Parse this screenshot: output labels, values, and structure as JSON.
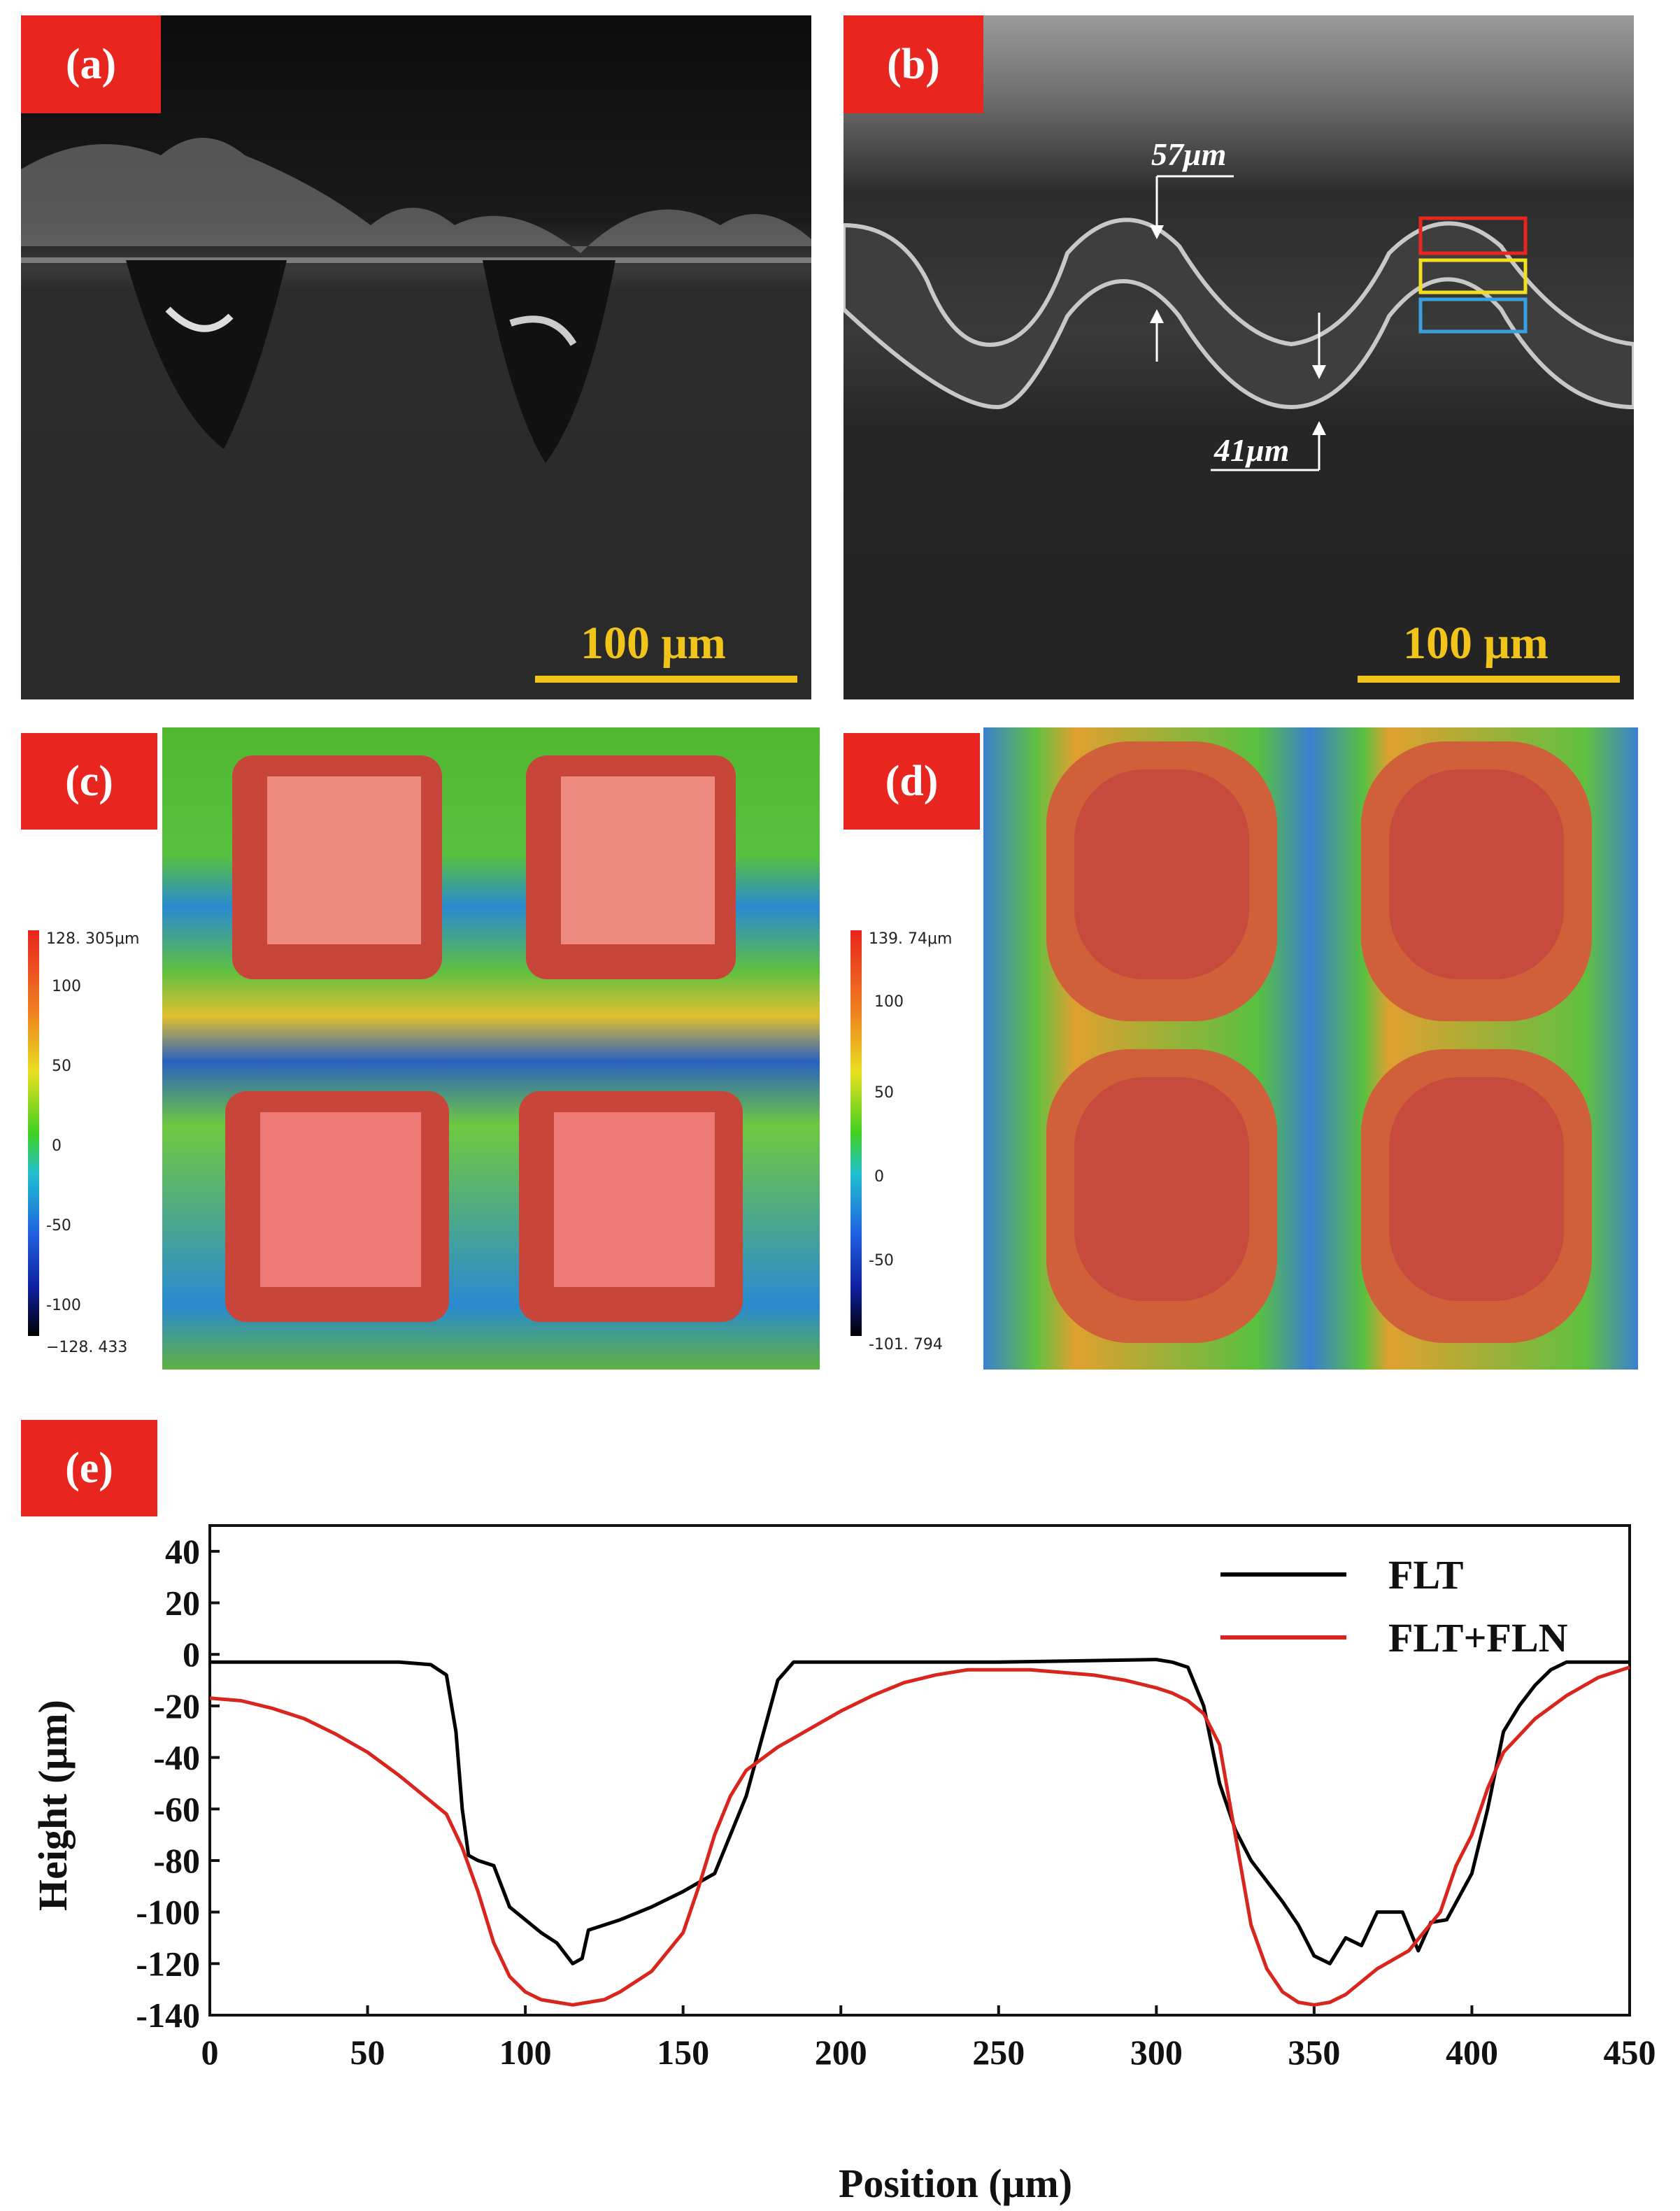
{
  "panels": {
    "a": {
      "tag": "(a)",
      "scale_label": "100 μm"
    },
    "b": {
      "tag": "(b)",
      "scale_label": "100 μm",
      "annot_top": "57μm",
      "annot_bottom": "41μm"
    },
    "c": {
      "tag": "(c)",
      "colorbar": [
        "128. 305μm",
        "100",
        "50",
        "0",
        "-50",
        "-100",
        "−128. 433"
      ]
    },
    "d": {
      "tag": "(d)",
      "colorbar": [
        "139. 74μm",
        "100",
        "50",
        "0",
        "-50",
        "-101. 794"
      ]
    },
    "e": {
      "tag": "(e)"
    }
  },
  "colors": {
    "tag_bg": "#e8251e",
    "scalebar": "#f0c419",
    "FLT": "#000000",
    "FLT_FLN": "#d8261f"
  },
  "chart_data": {
    "type": "line",
    "xlabel": "Position (μm)",
    "ylabel": "Height (μm)",
    "xlim": [
      0,
      450
    ],
    "ylim": [
      -140,
      50
    ],
    "xticks": [
      0,
      50,
      100,
      150,
      200,
      250,
      300,
      350,
      400,
      450
    ],
    "yticks": [
      40,
      20,
      0,
      -20,
      -40,
      -60,
      -80,
      -100,
      -120,
      -140
    ],
    "legend_position": "top-right",
    "series": [
      {
        "name": "FLT",
        "color": "#000000",
        "x": [
          0,
          20,
          40,
          60,
          70,
          75,
          78,
          80,
          82,
          85,
          90,
          95,
          100,
          105,
          110,
          115,
          118,
          120,
          125,
          130,
          140,
          150,
          160,
          170,
          180,
          185,
          200,
          250,
          300,
          305,
          310,
          315,
          320,
          325,
          330,
          335,
          340,
          345,
          350,
          355,
          360,
          365,
          370,
          378,
          383,
          387,
          392,
          400,
          405,
          410,
          415,
          420,
          425,
          430,
          440,
          450
        ],
        "y": [
          -3,
          -3,
          -3,
          -3,
          -4,
          -8,
          -30,
          -60,
          -78,
          -80,
          -82,
          -98,
          -103,
          -108,
          -112,
          -120,
          -118,
          -107,
          -105,
          -103,
          -98,
          -92,
          -85,
          -55,
          -10,
          -3,
          -3,
          -3,
          -2,
          -3,
          -5,
          -20,
          -50,
          -68,
          -80,
          -88,
          -96,
          -105,
          -117,
          -120,
          -110,
          -113,
          -100,
          -100,
          -115,
          -104,
          -103,
          -85,
          -60,
          -30,
          -20,
          -12,
          -6,
          -3,
          -3,
          -3
        ]
      },
      {
        "name": "FLT+FLN",
        "color": "#d8261f",
        "x": [
          0,
          10,
          20,
          30,
          40,
          50,
          60,
          70,
          75,
          80,
          85,
          90,
          95,
          100,
          105,
          110,
          115,
          120,
          125,
          130,
          140,
          150,
          155,
          160,
          165,
          170,
          180,
          190,
          200,
          210,
          220,
          230,
          240,
          250,
          260,
          270,
          280,
          290,
          300,
          305,
          310,
          315,
          320,
          325,
          330,
          335,
          340,
          345,
          350,
          355,
          360,
          370,
          380,
          390,
          395,
          400,
          405,
          410,
          420,
          430,
          440,
          450
        ],
        "y": [
          -17,
          -18,
          -21,
          -25,
          -31,
          -38,
          -47,
          -57,
          -62,
          -75,
          -92,
          -112,
          -125,
          -131,
          -134,
          -135,
          -136,
          -135,
          -134,
          -131,
          -123,
          -108,
          -90,
          -70,
          -55,
          -45,
          -36,
          -29,
          -22,
          -16,
          -11,
          -8,
          -6,
          -6,
          -6,
          -7,
          -8,
          -10,
          -13,
          -15,
          -18,
          -23,
          -35,
          -70,
          -105,
          -122,
          -131,
          -135,
          -136,
          -135,
          -132,
          -122,
          -115,
          -100,
          -82,
          -70,
          -52,
          -38,
          -25,
          -16,
          -9,
          -5
        ]
      }
    ]
  }
}
